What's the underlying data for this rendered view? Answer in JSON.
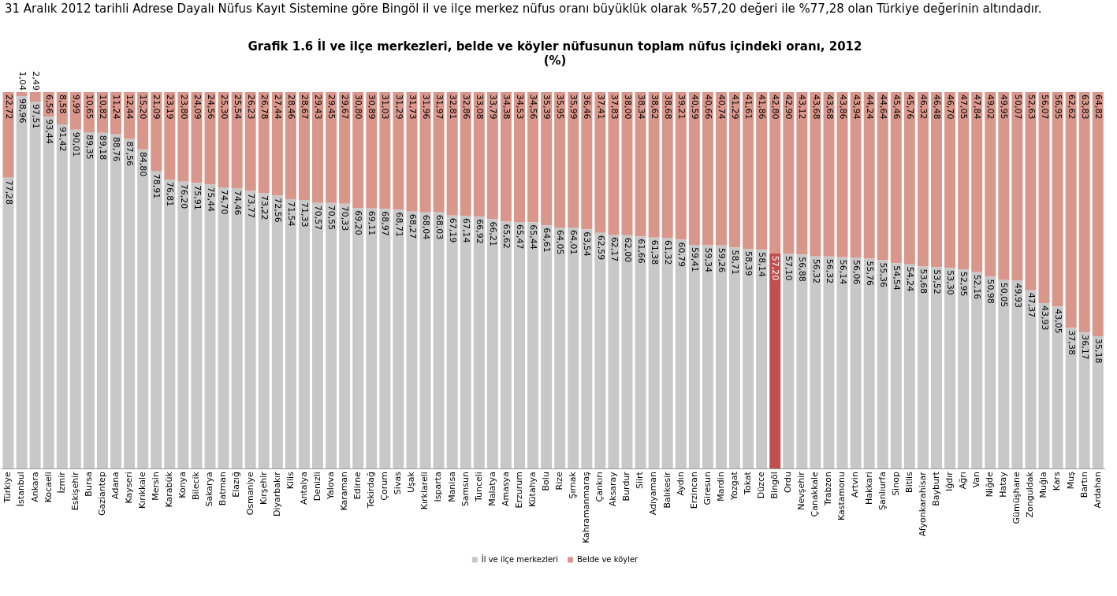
{
  "chart_data": {
    "type": "bar",
    "stacked": true,
    "title": "Grafik 1.6 İl ve ilçe merkezleri, belde ve köyler nüfusunun toplam nüfus içindeki oranı, 2012",
    "subtitle": "(%)",
    "annotations": [
      "31 Aralık 2012 tarihli Adrese Dayalı Nüfus Kayıt Sistemine göre Bingöl il ve ilçe merkez nüfus oranı büyüklük olarak %57,20 değeri ile %77,28 olan Türkiye değerinin altındadır."
    ],
    "categories": [
      "Türkiye",
      "İstanbul",
      "Ankara",
      "Kocaeli",
      "İzmir",
      "Eskişehir",
      "Bursa",
      "Gaziantep",
      "Adana",
      "Kayseri",
      "Kırıkkale",
      "Mersin",
      "Karabük",
      "Konya",
      "Bilecik",
      "Sakarya",
      "Batman",
      "Elazığ",
      "Osmaniye",
      "Kırşehir",
      "Diyarbakır",
      "Kilis",
      "Antalya",
      "Denizli",
      "Yalova",
      "Karaman",
      "Edirne",
      "Tekirdağ",
      "Çorum",
      "Sivas",
      "Uşak",
      "Kırklareli",
      "Isparta",
      "Manisa",
      "Samsun",
      "Tunceli",
      "Malatya",
      "Amasya",
      "Erzurum",
      "Kütahya",
      "Bolu",
      "Rize",
      "Şırnak",
      "Kahramanmaraş",
      "Çankırı",
      "Aksaray",
      "Burdur",
      "Siirt",
      "Adıyaman",
      "Balıkesir",
      "Aydın",
      "Erzincan",
      "Giresun",
      "Mardin",
      "Yozgat",
      "Tokat",
      "Düzce",
      "Bingöl",
      "Ordu",
      "Nevşehir",
      "Çanakkale",
      "Trabzon",
      "Kastamonu",
      "Artvin",
      "Hakkari",
      "Şanlıurfa",
      "Sinop",
      "Bitlis",
      "Afyonkarahisar",
      "Bayburt",
      "Iğdır",
      "Ağrı",
      "Van",
      "Niğde",
      "Hatay",
      "Gümüşhane",
      "Zonguldak",
      "Muğla",
      "Kars",
      "Muş",
      "Bartın",
      "Ardahan"
    ],
    "series": [
      {
        "name": "İl ve ilçe merkezleri",
        "color": "#c8c8c8",
        "colors": [
          "#c8c8c8",
          "#c8c8c8",
          "#c8c8c8",
          "#c8c8c8",
          "#c8c8c8",
          "#c8c8c8",
          "#c8c8c8",
          "#c8c8c8",
          "#c8c8c8",
          "#c8c8c8",
          "#c8c8c8",
          "#c8c8c8",
          "#c8c8c8",
          "#c8c8c8",
          "#c8c8c8",
          "#c8c8c8",
          "#c8c8c8",
          "#c8c8c8",
          "#c8c8c8",
          "#c8c8c8",
          "#c8c8c8",
          "#c8c8c8",
          "#c8c8c8",
          "#c8c8c8",
          "#c8c8c8",
          "#c8c8c8",
          "#c8c8c8",
          "#c8c8c8",
          "#c8c8c8",
          "#c8c8c8",
          "#c8c8c8",
          "#c8c8c8",
          "#c8c8c8",
          "#c8c8c8",
          "#c8c8c8",
          "#c8c8c8",
          "#c8c8c8",
          "#c8c8c8",
          "#c8c8c8",
          "#c8c8c8",
          "#c8c8c8",
          "#c8c8c8",
          "#c8c8c8",
          "#c8c8c8",
          "#c8c8c8",
          "#c8c8c8",
          "#c8c8c8",
          "#c8c8c8",
          "#c8c8c8",
          "#c8c8c8",
          "#c8c8c8",
          "#c8c8c8",
          "#c8c8c8",
          "#c8c8c8",
          "#c8c8c8",
          "#c8c8c8",
          "#c8c8c8",
          "#c0504d",
          "#c8c8c8",
          "#c8c8c8",
          "#c8c8c8",
          "#c8c8c8",
          "#c8c8c8",
          "#c8c8c8",
          "#c8c8c8",
          "#c8c8c8",
          "#c8c8c8",
          "#c8c8c8",
          "#c8c8c8",
          "#c8c8c8",
          "#c8c8c8",
          "#c8c8c8",
          "#c8c8c8",
          "#c8c8c8",
          "#c8c8c8",
          "#c8c8c8",
          "#c8c8c8",
          "#c8c8c8",
          "#c8c8c8",
          "#c8c8c8",
          "#c8c8c8",
          "#c8c8c8"
        ],
        "values": [
          77.28,
          98.96,
          97.51,
          93.44,
          91.42,
          90.01,
          89.35,
          89.18,
          88.76,
          87.56,
          84.8,
          78.91,
          76.81,
          76.2,
          75.91,
          75.44,
          74.7,
          74.46,
          73.77,
          73.22,
          72.56,
          71.54,
          71.33,
          70.57,
          70.55,
          70.33,
          69.2,
          69.11,
          68.97,
          68.71,
          68.27,
          68.04,
          68.03,
          67.19,
          67.14,
          66.92,
          66.21,
          65.62,
          65.47,
          65.44,
          64.61,
          64.05,
          64.01,
          63.54,
          62.59,
          62.17,
          62.0,
          61.66,
          61.38,
          61.32,
          60.79,
          59.41,
          59.34,
          59.26,
          58.71,
          58.39,
          58.14,
          57.2,
          57.1,
          56.88,
          56.32,
          56.32,
          56.14,
          56.06,
          55.76,
          55.36,
          54.54,
          54.24,
          53.68,
          53.52,
          53.3,
          52.95,
          52.16,
          50.98,
          50.05,
          49.93,
          47.37,
          43.93,
          43.05,
          37.38,
          36.17,
          35.18
        ],
        "value_labels": [
          "77,28",
          "98,96",
          "97,51",
          "93,44",
          "91,42",
          "90,01",
          "89,35",
          "89,18",
          "88,76",
          "87,56",
          "84,80",
          "78,91",
          "76,81",
          "76,20",
          "75,91",
          "75,44",
          "74,70",
          "74,46",
          "73,77",
          "73,22",
          "72,56",
          "71,54",
          "71,33",
          "70,57",
          "70,55",
          "70,33",
          "69,20",
          "69,11",
          "68,97",
          "68,71",
          "68,27",
          "68,04",
          "68,03",
          "67,19",
          "67,14",
          "66,92",
          "66,21",
          "65,62",
          "65,47",
          "65,44",
          "64,61",
          "64,05",
          "64,01",
          "63,54",
          "62,59",
          "62,17",
          "62,00",
          "61,66",
          "61,38",
          "61,32",
          "60,79",
          "59,41",
          "59,34",
          "59,26",
          "58,71",
          "58,39",
          "58,14",
          "57,20",
          "57,10",
          "56,88",
          "56,32",
          "56,32",
          "56,14",
          "56,06",
          "55,76",
          "55,36",
          "54,54",
          "54,24",
          "53,68",
          "53,52",
          "53,30",
          "52,95",
          "52,16",
          "50,98",
          "50,05",
          "49,93",
          "47,37",
          "43,93",
          "43,05",
          "37,38",
          "36,17",
          "35,18"
        ]
      },
      {
        "name": "Belde ve köyler",
        "color": "#d9968a",
        "values": [
          22.72,
          1.04,
          2.49,
          6.56,
          8.58,
          9.99,
          10.65,
          10.82,
          11.24,
          12.44,
          15.2,
          21.09,
          23.19,
          23.8,
          24.09,
          24.56,
          25.3,
          25.54,
          26.23,
          26.78,
          27.44,
          28.46,
          28.67,
          29.43,
          29.45,
          29.67,
          30.8,
          30.89,
          31.03,
          31.29,
          31.73,
          31.96,
          31.97,
          32.81,
          32.86,
          33.08,
          33.79,
          34.38,
          34.53,
          34.56,
          35.39,
          35.95,
          35.99,
          36.46,
          37.41,
          37.83,
          38.0,
          38.34,
          38.62,
          38.68,
          39.21,
          40.59,
          40.66,
          40.74,
          41.29,
          41.61,
          41.86,
          42.8,
          42.9,
          43.12,
          43.68,
          43.68,
          43.86,
          43.94,
          44.24,
          44.64,
          45.46,
          45.76,
          46.32,
          46.48,
          46.7,
          47.05,
          47.84,
          49.02,
          49.95,
          50.07,
          52.63,
          56.07,
          56.95,
          62.62,
          63.83,
          64.82
        ],
        "value_labels": [
          "22,72",
          "1,04",
          "2,49",
          "6,56",
          "8,58",
          "9,99",
          "10,65",
          "10,82",
          "11,24",
          "12,44",
          "15,20",
          "21,09",
          "23,19",
          "23,80",
          "24,09",
          "24,56",
          "25,30",
          "25,54",
          "26,23",
          "26,78",
          "27,44",
          "28,46",
          "28,67",
          "29,43",
          "29,45",
          "29,67",
          "30,80",
          "30,89",
          "31,03",
          "31,29",
          "31,73",
          "31,96",
          "31,97",
          "32,81",
          "32,86",
          "33,08",
          "33,79",
          "34,38",
          "34,53",
          "34,56",
          "35,39",
          "35,95",
          "35,99",
          "36,46",
          "37,41",
          "37,83",
          "38,00",
          "38,34",
          "38,62",
          "38,68",
          "39,21",
          "40,59",
          "40,66",
          "40,74",
          "41,29",
          "41,61",
          "41,86",
          "42,80",
          "42,90",
          "43,12",
          "43,68",
          "43,68",
          "43,86",
          "43,94",
          "44,24",
          "44,64",
          "45,46",
          "45,76",
          "46,32",
          "46,48",
          "46,70",
          "47,05",
          "47,84",
          "49,02",
          "49,95",
          "50,07",
          "52,63",
          "56,07",
          "56,95",
          "62,62",
          "63,83",
          "64,82"
        ]
      }
    ],
    "ylim": [
      0,
      100
    ],
    "tick_labels": "x",
    "legend": "bottom",
    "grid": false
  }
}
